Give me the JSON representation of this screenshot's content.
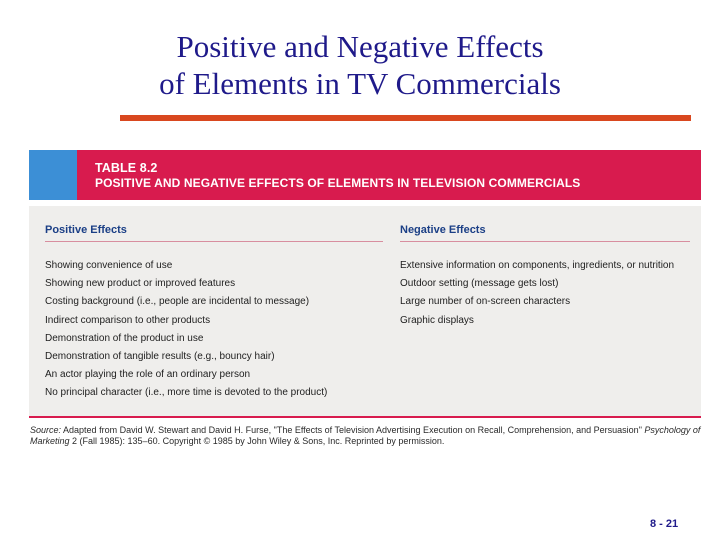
{
  "slide": {
    "title_line1": "Positive and Negative Effects",
    "title_line2": "of Elements in TV Commercials",
    "page_number": "8 - 21"
  },
  "table": {
    "number": "TABLE 8.2",
    "title": "POSITIVE AND NEGATIVE EFFECTS OF ELEMENTS IN TELEVISION COMMERCIALS",
    "positive_header": "Positive Effects",
    "negative_header": "Negative Effects",
    "positive_items": [
      "Showing convenience of use",
      "Showing new product or improved features",
      "Costing background (i.e., people are incidental to message)",
      "Indirect comparison to other products",
      "Demonstration of the product in use",
      "Demonstration of tangible results (e.g., bouncy hair)",
      "An actor playing the role of an ordinary person",
      "No principal character (i.e., more time is devoted to the product)"
    ],
    "negative_items": [
      "Extensive information on components, ingredients, or nutrition",
      "Outdoor setting (message gets lost)",
      "Large number of on-screen characters",
      "Graphic displays"
    ],
    "source_label": "Source:",
    "source_text_1": " Adapted from David W. Stewart and David H. Furse, \"The Effects of Television Advertising Execution on Recall, Comprehension, and Persuasion\" ",
    "source_journal": "Psychology of Marketing",
    "source_text_2": " 2 (Fall 1985): 135–60. Copyright © 1985 by John Wiley & Sons, Inc. Reprinted by permission."
  },
  "colors": {
    "title": "#1f1a8a",
    "accent_rule": "#d9481f",
    "table_header": "#d81b4e",
    "header_tab": "#3c8fd6",
    "body_bg": "#efeeec",
    "column_header": "#1b3f86"
  }
}
